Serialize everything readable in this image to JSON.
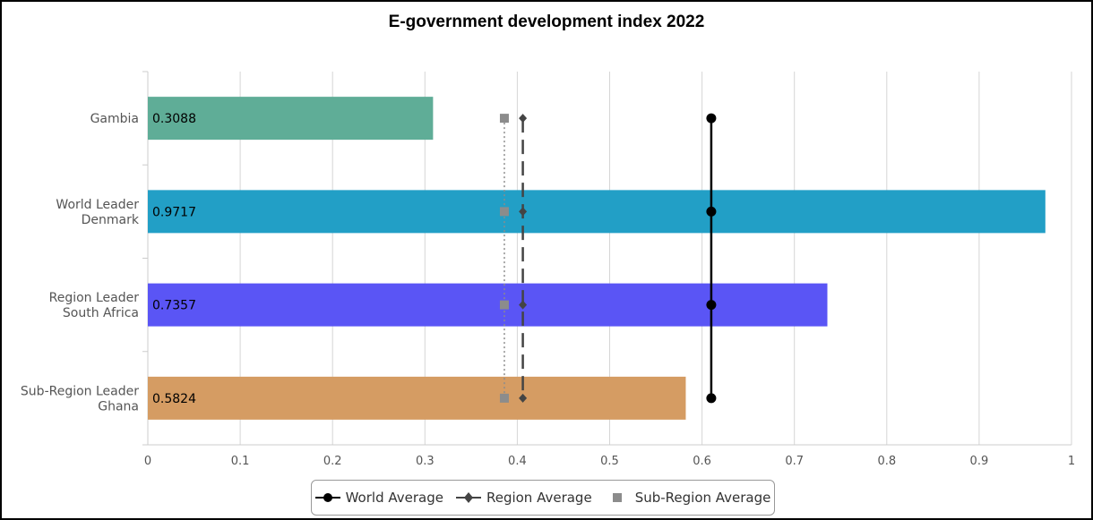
{
  "chart_data": {
    "type": "bar",
    "orientation": "horizontal",
    "title": "E-government development index 2022",
    "xlim": [
      0,
      1
    ],
    "x_ticks": [
      "0",
      "0.1",
      "0.2",
      "0.3",
      "0.4",
      "0.5",
      "0.6",
      "0.7",
      "0.8",
      "0.9",
      "1"
    ],
    "grid": true,
    "categories": [
      [
        "Gambia"
      ],
      [
        "World Leader",
        "Denmark"
      ],
      [
        "Region Leader",
        "South Africa"
      ],
      [
        "Sub-Region Leader",
        "Ghana"
      ]
    ],
    "values": [
      0.3088,
      0.9717,
      0.7357,
      0.5824
    ],
    "value_labels": [
      "0.3088",
      "0.9717",
      "0.7357",
      "0.5824"
    ],
    "bar_colors": [
      "#5fad97",
      "#229fc6",
      "#5a55f5",
      "#d59c63"
    ],
    "reference_lines": [
      {
        "name": "World Average",
        "value": 0.61,
        "color": "#000000",
        "style": "solid",
        "marker": "circle"
      },
      {
        "name": "Region Average",
        "value": 0.406,
        "color": "#444444",
        "style": "dashed",
        "marker": "diamond"
      },
      {
        "name": "Sub-Region Average",
        "value": 0.386,
        "color": "#8c8c8c",
        "style": "dotted",
        "marker": "square"
      }
    ],
    "legend_position": "bottom-center"
  }
}
